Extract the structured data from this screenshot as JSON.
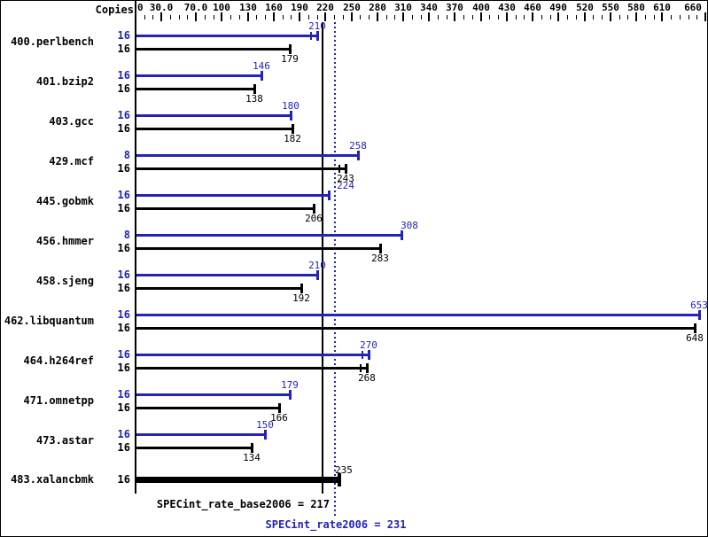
{
  "chart_data": {
    "type": "bar",
    "orientation": "horizontal",
    "copies_header": "Copies",
    "colors": {
      "peak": "#2424b4",
      "base": "#000000",
      "background": "#ffffff"
    },
    "axis": {
      "min": 0,
      "max": 660,
      "minor_tick_step": 10,
      "grid": false,
      "tick_labels": [
        {
          "label": "0",
          "value": 0
        },
        {
          "label": "30.0",
          "value": 30
        },
        {
          "label": "70.0",
          "value": 70
        },
        {
          "label": "100",
          "value": 100
        },
        {
          "label": "130",
          "value": 130
        },
        {
          "label": "160",
          "value": 160
        },
        {
          "label": "190",
          "value": 190
        },
        {
          "label": "220",
          "value": 220
        },
        {
          "label": "250",
          "value": 250
        },
        {
          "label": "280",
          "value": 280
        },
        {
          "label": "310",
          "value": 310
        },
        {
          "label": "340",
          "value": 340
        },
        {
          "label": "370",
          "value": 370
        },
        {
          "label": "400",
          "value": 400
        },
        {
          "label": "430",
          "value": 430
        },
        {
          "label": "460",
          "value": 460
        },
        {
          "label": "490",
          "value": 490
        },
        {
          "label": "520",
          "value": 520
        },
        {
          "label": "550",
          "value": 550
        },
        {
          "label": "580",
          "value": 580
        },
        {
          "label": "610",
          "value": 610
        },
        {
          "label": "660",
          "value": 660
        }
      ]
    },
    "benchmarks": [
      {
        "name": "400.perlbench",
        "bars": [
          {
            "kind": "peak",
            "copies": "16",
            "value": 210,
            "extra_tick": true
          },
          {
            "kind": "base",
            "copies": "16",
            "value": 179
          }
        ]
      },
      {
        "name": "401.bzip2",
        "bars": [
          {
            "kind": "peak",
            "copies": "16",
            "value": 146
          },
          {
            "kind": "base",
            "copies": "16",
            "value": 138
          }
        ]
      },
      {
        "name": "403.gcc",
        "bars": [
          {
            "kind": "peak",
            "copies": "16",
            "value": 180
          },
          {
            "kind": "base",
            "copies": "16",
            "value": 182
          }
        ]
      },
      {
        "name": "429.mcf",
        "bars": [
          {
            "kind": "peak",
            "copies": "8",
            "value": 258
          },
          {
            "kind": "base",
            "copies": "16",
            "value": 243,
            "extra_tick": true
          }
        ]
      },
      {
        "name": "445.gobmk",
        "bars": [
          {
            "kind": "peak",
            "copies": "16",
            "value": 224,
            "label_dx": 19
          },
          {
            "kind": "base",
            "copies": "16",
            "value": 206
          }
        ]
      },
      {
        "name": "456.hmmer",
        "bars": [
          {
            "kind": "peak",
            "copies": "8",
            "value": 308,
            "label_dx": 9
          },
          {
            "kind": "base",
            "copies": "16",
            "value": 283
          }
        ]
      },
      {
        "name": "458.sjeng",
        "bars": [
          {
            "kind": "peak",
            "copies": "16",
            "value": 210
          },
          {
            "kind": "base",
            "copies": "16",
            "value": 192
          }
        ]
      },
      {
        "name": "462.libquantum",
        "bars": [
          {
            "kind": "peak",
            "copies": "16",
            "value": 653
          },
          {
            "kind": "base",
            "copies": "16",
            "value": 648
          }
        ]
      },
      {
        "name": "464.h264ref",
        "bars": [
          {
            "kind": "peak",
            "copies": "16",
            "value": 270,
            "extra_tick": true
          },
          {
            "kind": "base",
            "copies": "16",
            "value": 268,
            "extra_tick": true
          }
        ]
      },
      {
        "name": "471.omnetpp",
        "bars": [
          {
            "kind": "peak",
            "copies": "16",
            "value": 179
          },
          {
            "kind": "base",
            "copies": "16",
            "value": 166
          }
        ]
      },
      {
        "name": "473.astar",
        "bars": [
          {
            "kind": "peak",
            "copies": "16",
            "value": 150
          },
          {
            "kind": "base",
            "copies": "16",
            "value": 134
          }
        ]
      },
      {
        "name": "483.xalancbmk",
        "bars": [
          {
            "kind": "single",
            "copies": "16",
            "value": 235,
            "thick": true,
            "label_dx": 6
          }
        ]
      }
    ],
    "reference_lines": [
      {
        "label": "SPECint_rate_base2006 = 217",
        "value": 217,
        "style": "solid",
        "color": "#000000"
      },
      {
        "label": "SPECint_rate2006 = 231",
        "value": 231,
        "style": "dotted",
        "color": "#2424b4"
      }
    ]
  }
}
